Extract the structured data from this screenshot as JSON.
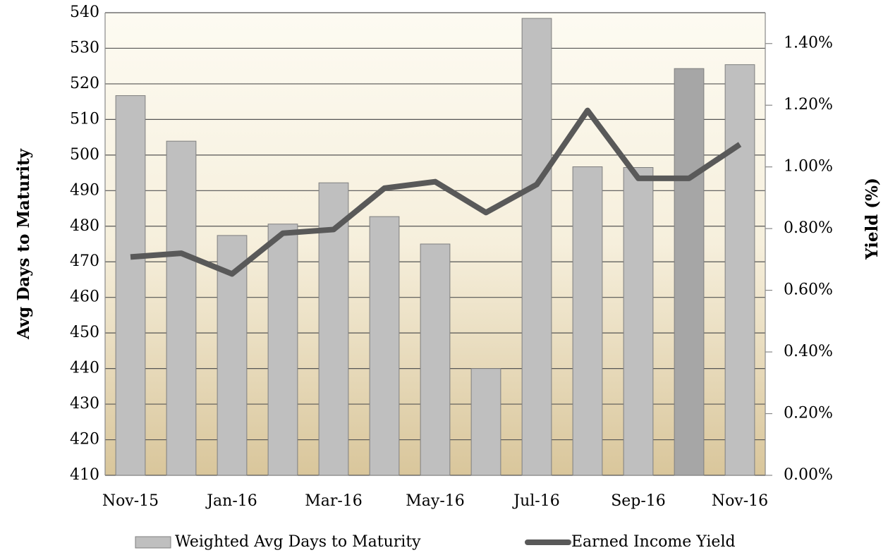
{
  "chart_data": {
    "type": "bar-line",
    "categories": [
      "Nov-15",
      null,
      "Jan-16",
      null,
      "Mar-16",
      null,
      "May-16",
      null,
      "Jul-16",
      null,
      "Sep-16",
      null,
      "Nov-16"
    ],
    "y_label": "Avg Days to Maturity",
    "y2_label": "Yield (%)",
    "ylim": [
      410,
      540
    ],
    "yticks": [
      410,
      420,
      430,
      440,
      450,
      460,
      470,
      480,
      490,
      500,
      510,
      520,
      530,
      540
    ],
    "y2lim": [
      0,
      1.5
    ],
    "y2ticks": [
      {
        "value": 0,
        "label": "0.00%"
      },
      {
        "value": 0.2,
        "label": "0.20%"
      },
      {
        "value": 0.4,
        "label": "0.40%"
      },
      {
        "value": 0.6,
        "label": "0.60%"
      },
      {
        "value": 0.8,
        "label": "0.80%"
      },
      {
        "value": 1.0,
        "label": "1.00%"
      },
      {
        "value": 1.2,
        "label": "1.20%"
      },
      {
        "value": 1.4,
        "label": "1.40%"
      }
    ],
    "grid": true,
    "legend": "bottom",
    "series": [
      {
        "name": "Weighted Avg Days to Maturity",
        "type": "bar",
        "color": "#bfbfbf",
        "colors": [
          "#bfbfbf",
          "#bfbfbf",
          "#bfbfbf",
          "#bfbfbf",
          "#bfbfbf",
          "#bfbfbf",
          "#bfbfbf",
          "#bfbfbf",
          "#bfbfbf",
          "#bfbfbf",
          "#bfbfbf",
          "#a6a6a6",
          "#bfbfbf"
        ],
        "values": [
          516.7,
          503.9,
          477.4,
          480.6,
          492.2,
          482.7,
          475,
          440,
          538.4,
          496.7,
          496.5,
          524.3,
          525.4
        ]
      },
      {
        "name": "Earned Income Yield",
        "type": "line",
        "axis": "y2",
        "color": "#595959",
        "values": [
          0.708,
          0.72,
          0.653,
          0.785,
          0.797,
          0.931,
          0.952,
          0.852,
          0.943,
          1.183,
          0.963,
          0.963,
          1.073
        ]
      }
    ]
  }
}
